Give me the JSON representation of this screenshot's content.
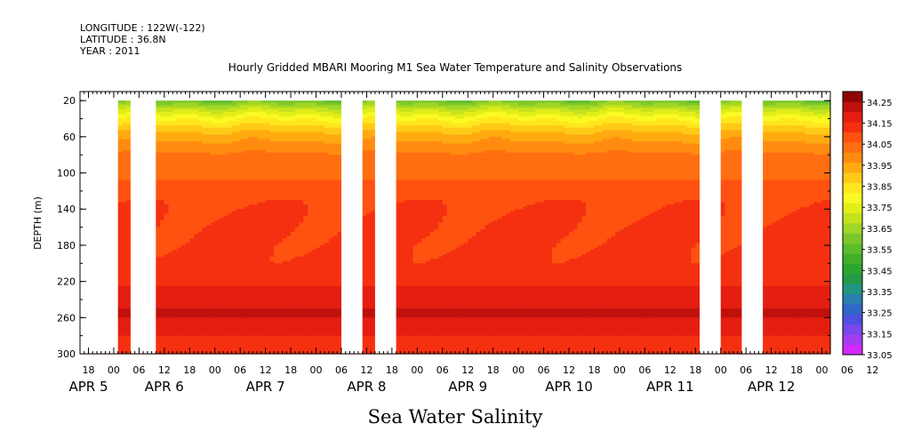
{
  "header": {
    "longitude": "LONGITUDE : 122W(-122)",
    "latitude": "LATITUDE : 36.8N",
    "year": "YEAR : 2011"
  },
  "chart_data": {
    "type": "heatmap",
    "title": "Hourly Gridded MBARI Mooring M1 Sea Water Temperature and Salinity Observations",
    "xlabel": "Sea Water Salinity",
    "ylabel": "DEPTH (m)",
    "x_unit": "hours since 2011-04-05 00:00",
    "xlim": [
      -8,
      170
    ],
    "ylim": [
      300,
      10
    ],
    "y_ticks": [
      20,
      60,
      100,
      140,
      180,
      220,
      260,
      300
    ],
    "x_hour_ticks": [
      "18",
      "00",
      "06",
      "12",
      "18",
      "00",
      "06",
      "12",
      "18",
      "00",
      "06",
      "12",
      "18",
      "00",
      "06",
      "12",
      "18",
      "00",
      "06",
      "12",
      "18",
      "00",
      "06",
      "12",
      "18",
      "00",
      "06",
      "12",
      "18",
      "00",
      "06",
      "12"
    ],
    "x_day_labels": [
      {
        "label": "APR  5",
        "hour": -6
      },
      {
        "label": "APR  6",
        "hour": 12
      },
      {
        "label": "APR  7",
        "hour": 36
      },
      {
        "label": "APR  8",
        "hour": 60
      },
      {
        "label": "APR  9",
        "hour": 84
      },
      {
        "label": "APR 10",
        "hour": 108
      },
      {
        "label": "APR 11",
        "hour": 132
      },
      {
        "label": "APR 12",
        "hour": 156
      }
    ],
    "data_gaps_hours": [
      [
        -8,
        1
      ],
      [
        4,
        10
      ],
      [
        54,
        59
      ],
      [
        62,
        67
      ],
      [
        139,
        144
      ],
      [
        149,
        154
      ]
    ],
    "depth_profile": {
      "depths": [
        20,
        30,
        40,
        50,
        60,
        70,
        80,
        100,
        120,
        140,
        160,
        180,
        200,
        210,
        220,
        230,
        240,
        250,
        260,
        270,
        280,
        290,
        300
      ],
      "salinity": [
        33.6,
        33.74,
        33.84,
        33.92,
        33.98,
        34.02,
        34.06,
        34.09,
        34.12,
        34.15,
        34.16,
        34.16,
        34.17,
        34.18,
        34.19,
        34.21,
        34.23,
        34.25,
        34.25,
        34.23,
        34.2,
        34.19,
        34.19
      ]
    },
    "colorbar": {
      "labels": [
        "34.25",
        "34.15",
        "34.05",
        "33.95",
        "33.85",
        "33.75",
        "33.65",
        "33.55",
        "33.45",
        "33.35",
        "33.25",
        "33.15",
        "33.05"
      ],
      "levels": [
        33.05,
        33.1,
        33.15,
        33.2,
        33.25,
        33.3,
        33.35,
        33.4,
        33.45,
        33.5,
        33.55,
        33.6,
        33.65,
        33.7,
        33.75,
        33.8,
        33.85,
        33.9,
        33.95,
        34.0,
        34.05,
        34.1,
        34.15,
        34.2,
        34.25,
        34.3
      ],
      "colors": [
        "#d22aff",
        "#a43cf0",
        "#7a48e8",
        "#4d50e0",
        "#3066c8",
        "#2a7fb0",
        "#1f9680",
        "#229a4a",
        "#2aa62e",
        "#40b02a",
        "#5cbc2a",
        "#7cc82a",
        "#a0d626",
        "#c4e21e",
        "#e2ee18",
        "#fafa22",
        "#ffe61e",
        "#ffca16",
        "#ffaa10",
        "#ff8c10",
        "#ff6e10",
        "#ff5210",
        "#f53010",
        "#e41e10",
        "#c0100c",
        "#8e0404"
      ]
    }
  }
}
